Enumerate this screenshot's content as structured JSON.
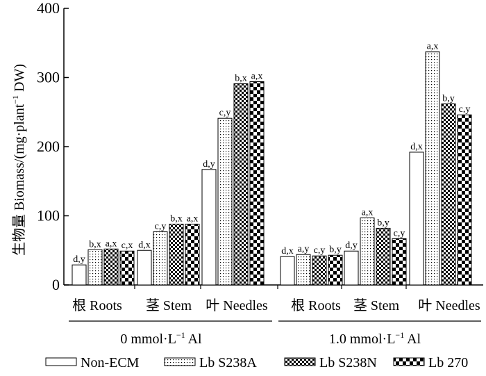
{
  "chart_data": {
    "type": "bar",
    "title": "",
    "ylabel_prefix": "生物量 Biomass/(mg·plant",
    "ylabel_sup": "−1",
    "ylabel_suffix": " DW)",
    "ylim": [
      0,
      400
    ],
    "yticks": [
      "0",
      "100",
      "200",
      "300",
      "400"
    ],
    "grid": false,
    "legend_position": "bottom",
    "series": [
      {
        "name": "Non-ECM",
        "pattern": "plain"
      },
      {
        "name": "Lb S238A",
        "pattern": "dots"
      },
      {
        "name": "Lb S238N",
        "pattern": "smallcheck"
      },
      {
        "name": "Lb 270",
        "pattern": "largecheck"
      }
    ],
    "groups": [
      {
        "condition": "0 mmol·L⁻¹ Al",
        "cond_main": "0 mmol·L",
        "cond_sup": "−1",
        "cond_tail": " Al",
        "categories": [
          {
            "label": "根 Roots",
            "values": [
              29,
              51,
              52,
              49
            ],
            "labels": [
              "d,y",
              "b,x",
              "a,x",
              "c,x"
            ]
          },
          {
            "label": "茎 Stem",
            "values": [
              50,
              77,
              88,
              88
            ],
            "labels": [
              "d,x",
              "c,y",
              "b,x",
              "a,x"
            ]
          },
          {
            "label": "叶 Needles",
            "values": [
              167,
              241,
              291,
              294
            ],
            "labels": [
              "d,y",
              "c,y",
              "b,x",
              "a,x"
            ]
          }
        ]
      },
      {
        "condition": "1.0 mmol·L⁻¹ Al",
        "cond_main": "1.0 mmol·L",
        "cond_sup": "−1",
        "cond_tail": " Al",
        "categories": [
          {
            "label": "根 Roots",
            "values": [
              41,
              44,
              42,
              43
            ],
            "labels": [
              "d,x",
              "a,y",
              "c,y",
              "b,y"
            ]
          },
          {
            "label": "茎 Stem",
            "values": [
              49,
              97,
              82,
              67
            ],
            "labels": [
              "d,y",
              "a,x",
              "b,y",
              "c,y"
            ]
          },
          {
            "label": "叶 Needles",
            "values": [
              192,
              337,
              262,
              246
            ],
            "labels": [
              "d,x",
              "a,x",
              "b,y",
              "c,y"
            ]
          }
        ]
      }
    ]
  }
}
